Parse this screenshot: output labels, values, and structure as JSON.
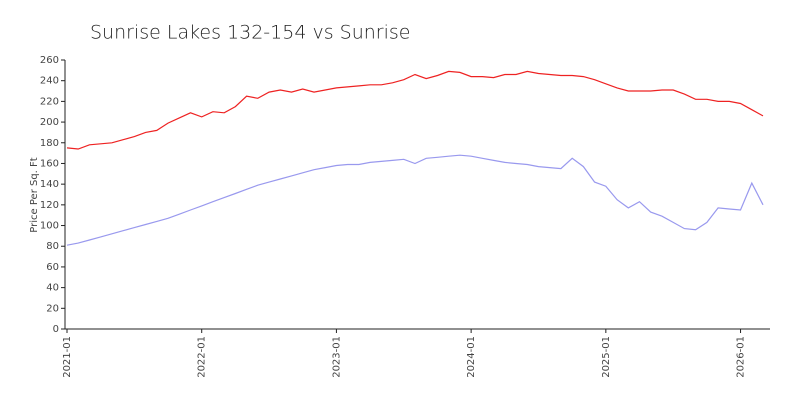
{
  "chart_data": {
    "type": "line",
    "title": "Sunrise Lakes 132-154 vs Sunrise",
    "y_label": "Price Per Sq. Ft",
    "x": [
      "2021-01",
      "2021-02",
      "2021-03",
      "2021-04",
      "2021-05",
      "2021-06",
      "2021-07",
      "2021-08",
      "2021-09",
      "2021-10",
      "2021-11",
      "2021-12",
      "2022-01",
      "2022-02",
      "2022-03",
      "2022-04",
      "2022-05",
      "2022-06",
      "2022-07",
      "2022-08",
      "2022-09",
      "2022-10",
      "2022-11",
      "2022-12",
      "2023-01",
      "2023-02",
      "2023-03",
      "2023-04",
      "2023-05",
      "2023-06",
      "2023-07",
      "2023-08",
      "2023-09",
      "2023-10",
      "2023-11",
      "2023-12",
      "2024-01",
      "2024-02",
      "2024-03",
      "2024-04",
      "2024-05",
      "2024-06",
      "2024-07",
      "2024-08",
      "2024-09",
      "2024-10",
      "2024-11",
      "2024-12",
      "2025-01",
      "2025-02",
      "2025-03",
      "2025-04",
      "2025-05",
      "2025-06",
      "2025-07",
      "2025-08",
      "2025-09",
      "2025-10",
      "2025-11",
      "2025-12",
      "2026-01",
      "2026-02",
      "2026-03"
    ],
    "series": [
      {
        "color": "#ee2222",
        "values": [
          175,
          174,
          178,
          179,
          180,
          183,
          186,
          190,
          192,
          199,
          204,
          209,
          205,
          210,
          209,
          215,
          225,
          223,
          229,
          231,
          229,
          232,
          229,
          231,
          233,
          234,
          235,
          236,
          236,
          238,
          241,
          246,
          242,
          245,
          249,
          248,
          244,
          244,
          243,
          246,
          246,
          249,
          247,
          246,
          245,
          245,
          244,
          241,
          237,
          233,
          230,
          230,
          230,
          231,
          231,
          227,
          222,
          222,
          220,
          220,
          218,
          212,
          206
        ]
      },
      {
        "color": "#9999ee",
        "values": [
          81,
          83,
          86,
          89,
          92,
          95,
          98,
          101,
          104,
          107,
          111,
          115,
          119,
          123,
          127,
          131,
          135,
          139,
          142,
          145,
          148,
          151,
          154,
          156,
          158,
          159,
          159,
          161,
          162,
          163,
          164,
          160,
          165,
          166,
          167,
          168,
          167,
          165,
          163,
          161,
          160,
          159,
          157,
          156,
          155,
          165,
          157,
          142,
          138,
          125,
          117,
          123,
          113,
          109,
          103,
          97,
          96,
          103,
          117,
          116,
          115,
          141,
          120
        ]
      }
    ],
    "xlim": [
      "2021-01",
      "2026-03"
    ],
    "xticks": [
      "2021-01",
      "2022-01",
      "2023-01",
      "2024-01",
      "2025-01",
      "2026-01"
    ],
    "ylim": [
      0,
      260
    ],
    "yticks": [
      0,
      20,
      40,
      60,
      80,
      100,
      120,
      140,
      160,
      180,
      200,
      220,
      240,
      260
    ],
    "grid": false
  }
}
